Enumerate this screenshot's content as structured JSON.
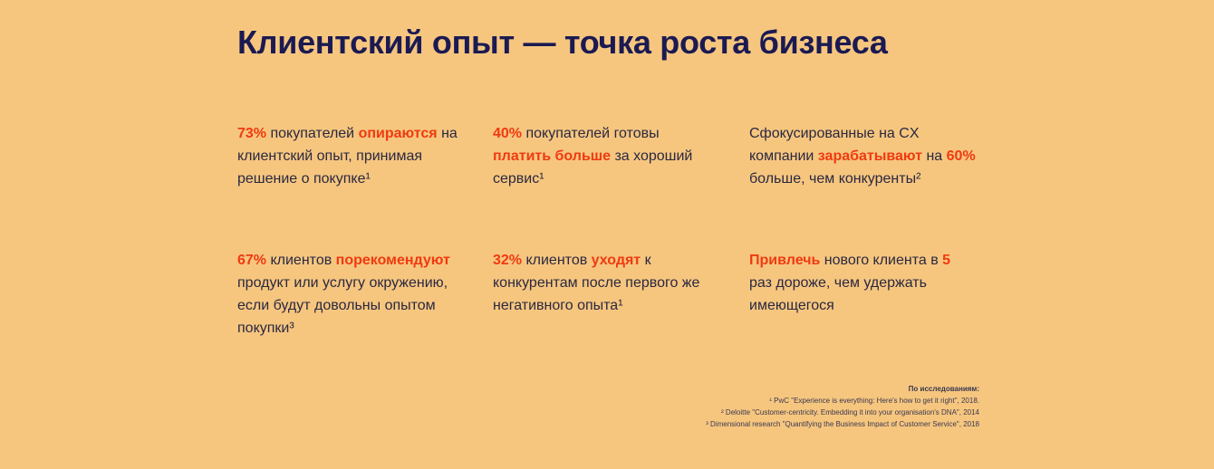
{
  "title": "Клиентский опыт — точка роста бизнеса",
  "colors": {
    "background": "#F6C67F",
    "text": "#1e1c4b",
    "accent": "#f03a10"
  },
  "cards": [
    {
      "segments": [
        {
          "t": "73%",
          "hl": true
        },
        {
          "t": " покупателей ",
          "hl": false
        },
        {
          "t": "опираются",
          "hl": true
        },
        {
          "t": " на клиентский опыт, принимая решение о покупке¹",
          "hl": false
        }
      ]
    },
    {
      "segments": [
        {
          "t": "40%",
          "hl": true
        },
        {
          "t": " покупателей готовы ",
          "hl": false
        },
        {
          "t": "платить больше",
          "hl": true
        },
        {
          "t": " за хороший сервис¹",
          "hl": false
        }
      ]
    },
    {
      "segments": [
        {
          "t": "Сфокусированные на CX компании ",
          "hl": false
        },
        {
          "t": "зарабатывают",
          "hl": true
        },
        {
          "t": " на ",
          "hl": false
        },
        {
          "t": "60%",
          "hl": true
        },
        {
          "t": " больше, чем конкуренты²",
          "hl": false
        }
      ]
    },
    {
      "segments": [
        {
          "t": "67%",
          "hl": true
        },
        {
          "t": " клиентов ",
          "hl": false
        },
        {
          "t": "порекомендуют",
          "hl": true
        },
        {
          "t": " продукт или услугу окружению, если будут довольны опытом покупки³",
          "hl": false
        }
      ]
    },
    {
      "segments": [
        {
          "t": "32%",
          "hl": true
        },
        {
          "t": " клиентов ",
          "hl": false
        },
        {
          "t": "уходят",
          "hl": true
        },
        {
          "t": " к конкурентам после первого же негативного опыта¹",
          "hl": false
        }
      ]
    },
    {
      "segments": [
        {
          "t": "Привлечь",
          "hl": true
        },
        {
          "t": " нового клиента в ",
          "hl": false
        },
        {
          "t": "5",
          "hl": true
        },
        {
          "t": " раз дороже, чем удержать имеющегося",
          "hl": false
        }
      ]
    }
  ],
  "footnotes": {
    "heading": "По исследованиям:",
    "items": [
      "¹ PwC \"Experience is everything: Here's how to get it right\", 2018.",
      "² Deloitte \"Customer-centricity. Embedding it into your organisation's DNA\", 2014",
      "³ Dimensional research \"Quantifying the Business Impact of Customer Service\", 2018"
    ]
  }
}
